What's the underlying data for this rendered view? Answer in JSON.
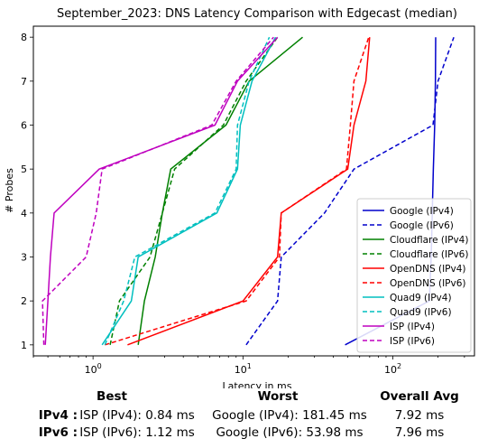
{
  "chart_data": {
    "type": "line",
    "title": "September_2023: DNS Latency Comparison with Edgecast (median)",
    "xlabel": "Latency in ms",
    "ylabel": "# Probes",
    "xscale": "log",
    "xlim": [
      0.4,
      350
    ],
    "ylim": [
      0.75,
      8.25
    ],
    "xticks": [
      {
        "value": 1,
        "label": "10^0"
      },
      {
        "value": 10,
        "label": "10^1"
      },
      {
        "value": 100,
        "label": "10^2"
      }
    ],
    "yticks": [
      1,
      2,
      3,
      4,
      5,
      6,
      7,
      8
    ],
    "grid": false,
    "legend": "lower-right",
    "series": [
      {
        "name": "Google (IPv4)",
        "color": "#0000cc",
        "dash": "solid",
        "points": [
          [
            48,
            1
          ],
          [
            175,
            2
          ],
          [
            180,
            3
          ],
          [
            183,
            4
          ],
          [
            186,
            5
          ],
          [
            190,
            6
          ],
          [
            192,
            7
          ],
          [
            193,
            8
          ]
        ]
      },
      {
        "name": "Google (IPv6)",
        "color": "#0000cc",
        "dash": "dashed",
        "points": [
          [
            10.5,
            1
          ],
          [
            17,
            2
          ],
          [
            18,
            3
          ],
          [
            35,
            4
          ],
          [
            55,
            5
          ],
          [
            185,
            6
          ],
          [
            200,
            7
          ],
          [
            255,
            8
          ]
        ]
      },
      {
        "name": "Cloudflare (IPv4)",
        "color": "#008000",
        "dash": "solid",
        "points": [
          [
            2.0,
            1
          ],
          [
            2.2,
            2
          ],
          [
            2.6,
            3
          ],
          [
            2.9,
            4
          ],
          [
            3.3,
            5
          ],
          [
            7.7,
            6
          ],
          [
            11,
            7
          ],
          [
            25,
            8
          ]
        ]
      },
      {
        "name": "Cloudflare (IPv6)",
        "color": "#008000",
        "dash": "dashed",
        "points": [
          [
            1.3,
            1
          ],
          [
            1.5,
            2
          ],
          [
            2.4,
            3
          ],
          [
            2.9,
            4
          ],
          [
            3.5,
            5
          ],
          [
            7.4,
            6
          ],
          [
            10.5,
            7
          ],
          [
            17,
            8
          ]
        ]
      },
      {
        "name": "OpenDNS (IPv4)",
        "color": "#ff0000",
        "dash": "solid",
        "points": [
          [
            1.7,
            1
          ],
          [
            10,
            2
          ],
          [
            17,
            3
          ],
          [
            18,
            4
          ],
          [
            50,
            5
          ],
          [
            55,
            6
          ],
          [
            66,
            7
          ],
          [
            70,
            8
          ]
        ]
      },
      {
        "name": "OpenDNS (IPv6)",
        "color": "#ff0000",
        "dash": "dashed",
        "points": [
          [
            1.2,
            1
          ],
          [
            10.5,
            2
          ],
          [
            17.5,
            3
          ],
          [
            18,
            4
          ],
          [
            49,
            5
          ],
          [
            52,
            6
          ],
          [
            55,
            7
          ],
          [
            69,
            8
          ]
        ]
      },
      {
        "name": "Quad9 (IPv4)",
        "color": "#00bfbf",
        "dash": "solid",
        "points": [
          [
            1.15,
            1
          ],
          [
            1.8,
            2
          ],
          [
            2.0,
            3
          ],
          [
            6.7,
            4
          ],
          [
            9.2,
            5
          ],
          [
            9.6,
            6
          ],
          [
            11.5,
            7
          ],
          [
            16.5,
            8
          ]
        ]
      },
      {
        "name": "Quad9 (IPv6)",
        "color": "#00bfbf",
        "dash": "dashed",
        "points": [
          [
            1.2,
            1
          ],
          [
            1.6,
            2
          ],
          [
            1.9,
            3
          ],
          [
            6.5,
            4
          ],
          [
            9.0,
            5
          ],
          [
            9.2,
            6
          ],
          [
            11,
            7
          ],
          [
            15,
            8
          ]
        ]
      },
      {
        "name": "ISP (IPv4)",
        "color": "#bf00bf",
        "dash": "solid",
        "points": [
          [
            0.48,
            1
          ],
          [
            0.5,
            2
          ],
          [
            0.52,
            3
          ],
          [
            0.55,
            4
          ],
          [
            1.1,
            5
          ],
          [
            6.5,
            6
          ],
          [
            9.2,
            7
          ],
          [
            17,
            8
          ]
        ]
      },
      {
        "name": "ISP (IPv6)",
        "color": "#bf00bf",
        "dash": "dashed",
        "points": [
          [
            0.47,
            1
          ],
          [
            0.46,
            2
          ],
          [
            0.9,
            3
          ],
          [
            1.05,
            4
          ],
          [
            1.15,
            5
          ],
          [
            6.2,
            6
          ],
          [
            9,
            7
          ],
          [
            16,
            8
          ]
        ]
      }
    ]
  },
  "summary": {
    "headers": {
      "best": "Best",
      "worst": "Worst",
      "avg": "Overall Avg"
    },
    "rows": [
      {
        "label": "IPv4 :",
        "best": "ISP (IPv4): 0.84 ms",
        "worst": "Google (IPv4): 181.45 ms",
        "avg": "7.92 ms"
      },
      {
        "label": "IPv6 :",
        "best": "ISP (IPv6): 1.12 ms",
        "worst": "Google (IPv6): 53.98 ms",
        "avg": "7.96 ms"
      }
    ]
  }
}
